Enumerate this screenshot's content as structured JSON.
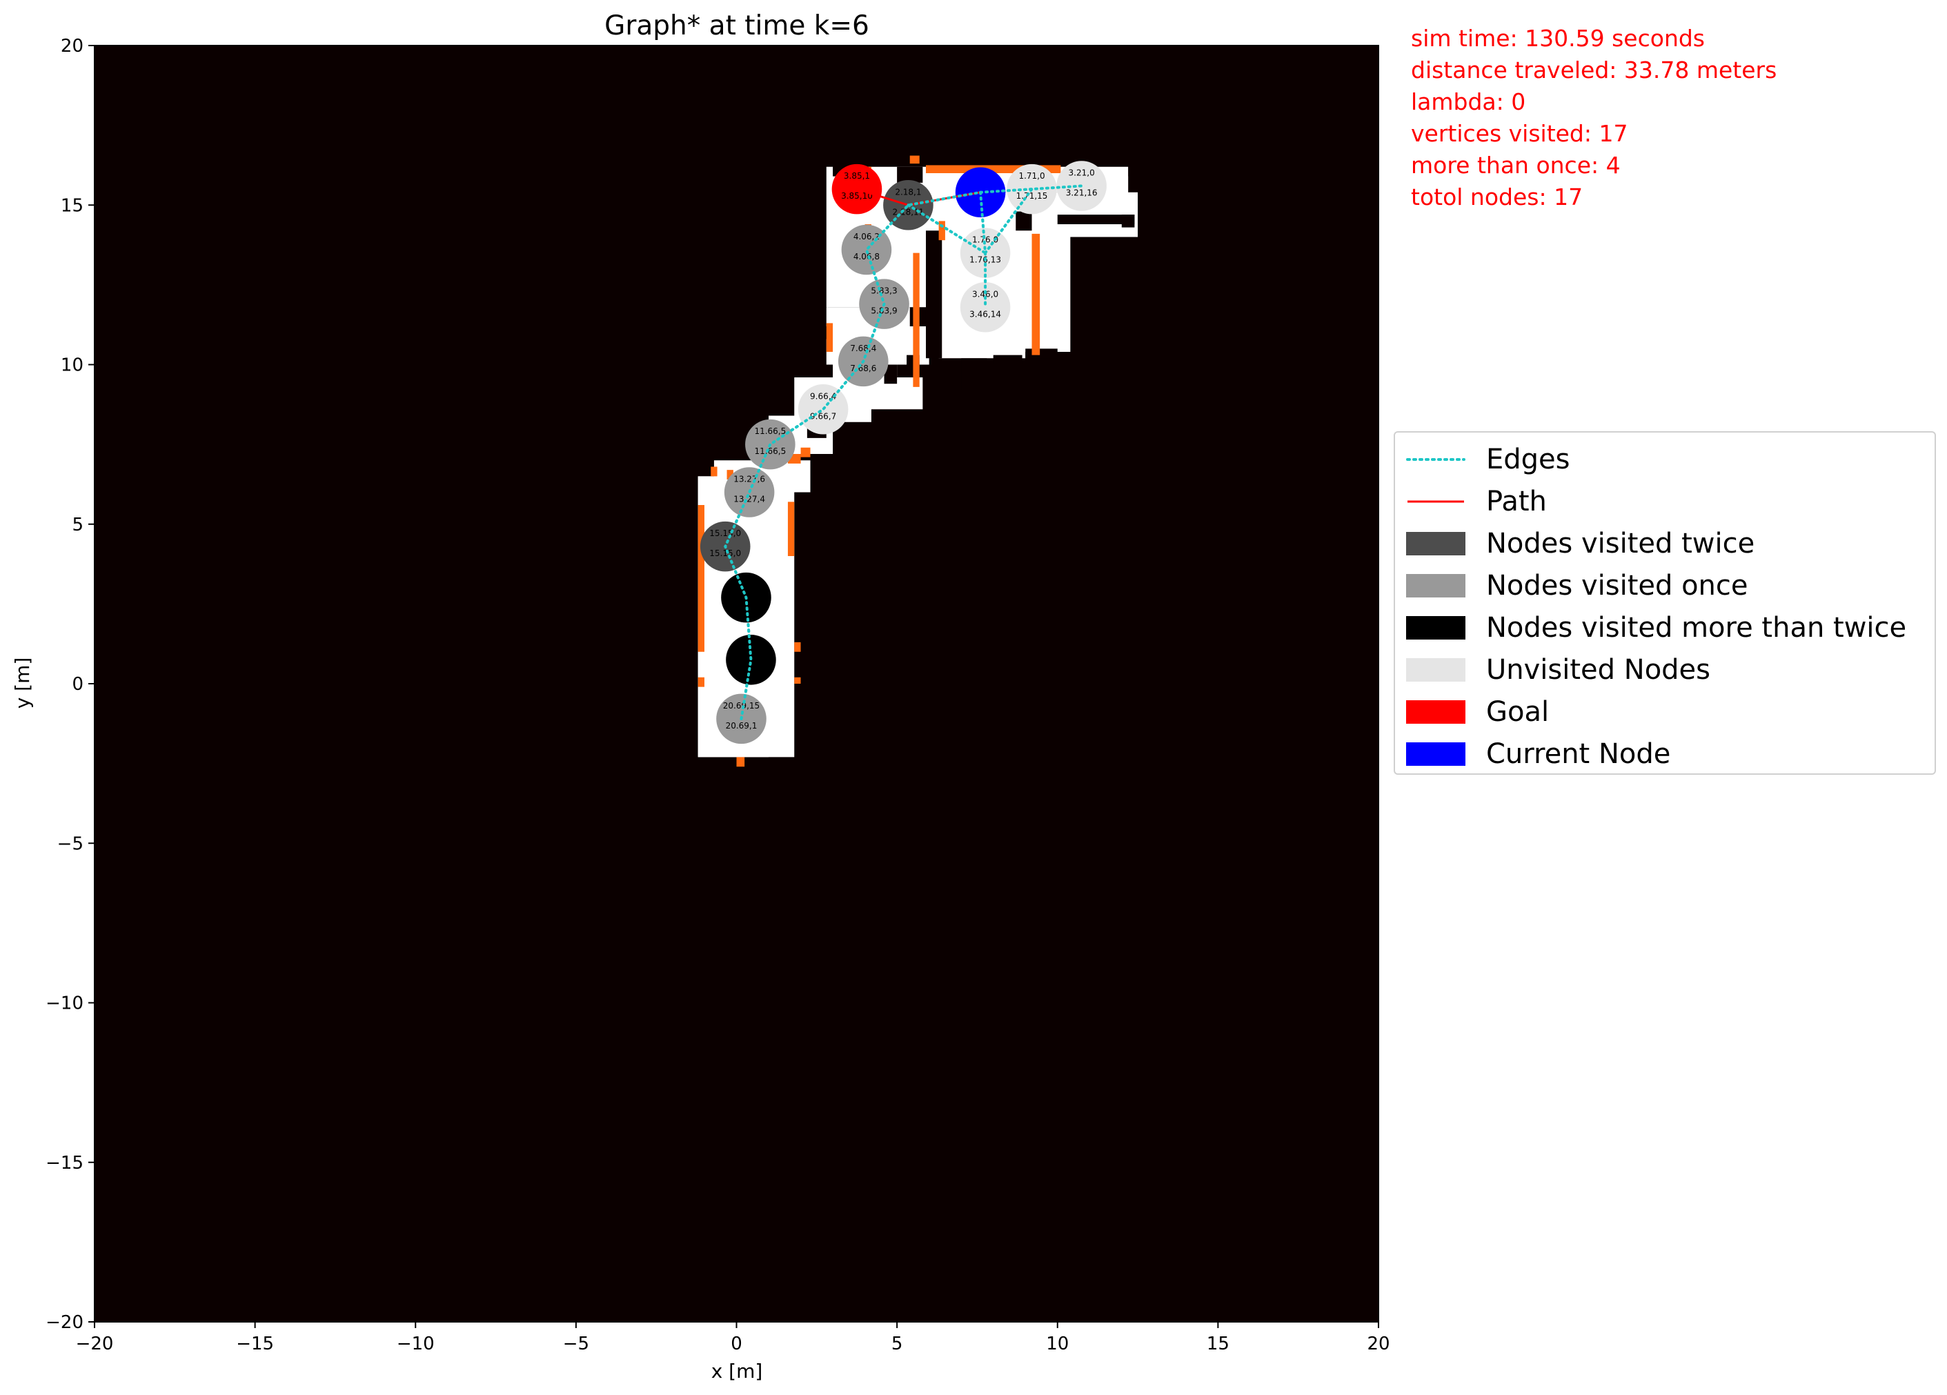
{
  "chart_data": {
    "type": "scatter",
    "title": "Graph* at time k=6",
    "xlabel": "x [m]",
    "ylabel": "y [m]",
    "xlim": [
      -20,
      20
    ],
    "ylim": [
      -20,
      20
    ],
    "xticks": [
      -20,
      -15,
      -10,
      -5,
      0,
      5,
      10,
      15,
      20
    ],
    "yticks": [
      -20,
      -15,
      -10,
      -5,
      0,
      5,
      10,
      15,
      20
    ],
    "tick_labels_x": [
      "−20",
      "−15",
      "−10",
      "−5",
      "0",
      "5",
      "10",
      "15",
      "20"
    ],
    "tick_labels_y": [
      "−20",
      "−15",
      "−10",
      "−5",
      "0",
      "5",
      "10",
      "15",
      "20"
    ],
    "background_color": "#0b0000",
    "free_space_color": "#ffffff",
    "wall_color": "#ff6a10",
    "map_cells": [
      [
        -1.2,
        -2.3,
        3.0,
        8.8
      ],
      [
        -1.2,
        -2.3,
        2.2,
        8.8
      ],
      [
        -0.7,
        6.0,
        3.0,
        1.0
      ],
      [
        1.0,
        7.2,
        2.0,
        1.2
      ],
      [
        1.8,
        8.2,
        2.4,
        1.4
      ],
      [
        3.0,
        9.4,
        2.0,
        1.2
      ],
      [
        2.8,
        8.6,
        3.0,
        1.0
      ],
      [
        2.8,
        10.0,
        3.2,
        0.4
      ],
      [
        2.8,
        10.4,
        3.4,
        0.4
      ],
      [
        2.9,
        10.8,
        3.2,
        0.4
      ],
      [
        2.8,
        11.2,
        2.6,
        0.6
      ],
      [
        2.8,
        11.8,
        3.2,
        3.0
      ],
      [
        2.8,
        14.8,
        5.0,
        1.4
      ],
      [
        5.5,
        14.0,
        7.0,
        1.4
      ],
      [
        5.9,
        15.4,
        6.3,
        0.8
      ],
      [
        6.3,
        10.2,
        2.7,
        4.6
      ],
      [
        8.8,
        10.4,
        1.6,
        4.0
      ],
      [
        10.4,
        14.6,
        1.8,
        1.3
      ]
    ],
    "black_cells": [
      [
        5.9,
        10.2,
        0.5,
        4.0
      ],
      [
        8.7,
        14.2,
        0.5,
        0.6
      ],
      [
        10.0,
        14.4,
        2.4,
        0.3
      ],
      [
        12.0,
        14.3,
        0.4,
        0.4
      ],
      [
        5.3,
        9.8,
        0.4,
        0.5
      ],
      [
        4.6,
        9.4,
        0.4,
        0.6
      ],
      [
        3.0,
        8.4,
        0.4,
        0.3
      ],
      [
        2.2,
        7.7,
        0.6,
        0.4
      ],
      [
        9.0,
        10.2,
        1.0,
        0.3
      ],
      [
        7.0,
        9.2,
        0.8,
        1.0
      ],
      [
        8.0,
        10.0,
        0.9,
        0.3
      ],
      [
        3.0,
        15.9,
        1.0,
        0.4
      ],
      [
        5.0,
        15.7,
        0.8,
        0.5
      ]
    ],
    "wall_cells": [
      [
        2.8,
        10.4,
        0.2,
        0.9
      ],
      [
        4.0,
        14.0,
        0.2,
        0.4
      ],
      [
        5.9,
        16.0,
        4.2,
        0.25
      ],
      [
        5.5,
        9.3,
        0.2,
        4.2
      ],
      [
        9.2,
        10.3,
        0.25,
        3.8
      ],
      [
        -1.2,
        1.0,
        0.2,
        4.6
      ],
      [
        1.6,
        4.0,
        0.2,
        1.7
      ],
      [
        -0.3,
        6.4,
        0.2,
        0.3
      ],
      [
        -0.8,
        6.5,
        0.2,
        0.3
      ],
      [
        1.3,
        7.0,
        0.2,
        0.3
      ],
      [
        1.6,
        6.9,
        0.4,
        0.3
      ],
      [
        2.0,
        7.1,
        0.3,
        0.3
      ],
      [
        1.8,
        1.0,
        0.2,
        0.3
      ],
      [
        1.8,
        0.0,
        0.2,
        0.2
      ],
      [
        0.0,
        -2.6,
        0.25,
        0.3
      ],
      [
        -1.2,
        -0.1,
        0.2,
        0.3
      ],
      [
        4.0,
        15.7,
        0.2,
        0.5
      ],
      [
        5.4,
        16.3,
        0.3,
        0.25
      ],
      [
        6.3,
        13.9,
        0.2,
        0.6
      ]
    ],
    "nodes": [
      {
        "x": 3.75,
        "y": 15.5,
        "label": "3.85,1",
        "label2": "3.85,10",
        "status": "goal"
      },
      {
        "x": 5.35,
        "y": 15.0,
        "label": "2.18,1",
        "label2": "2.18,11",
        "status": "visited_twice"
      },
      {
        "x": 7.6,
        "y": 15.4,
        "label": "",
        "label2": "",
        "status": "current"
      },
      {
        "x": 9.2,
        "y": 15.5,
        "label": "1.71,0",
        "label2": "1.71,15",
        "status": "unvisited"
      },
      {
        "x": 10.75,
        "y": 15.6,
        "label": "3.21,0",
        "label2": "3.21,16",
        "status": "unvisited"
      },
      {
        "x": 4.05,
        "y": 13.6,
        "label": "4.06,2",
        "label2": "4.06,8",
        "status": "visited_once"
      },
      {
        "x": 7.75,
        "y": 13.5,
        "label": "1.76,0",
        "label2": "1.76,13",
        "status": "unvisited"
      },
      {
        "x": 4.6,
        "y": 11.9,
        "label": "5.83,3",
        "label2": "5.83,9",
        "status": "visited_once"
      },
      {
        "x": 7.75,
        "y": 11.8,
        "label": "3.46,0",
        "label2": "3.46,14",
        "status": "unvisited"
      },
      {
        "x": 3.95,
        "y": 10.1,
        "label": "7.68,4",
        "label2": "7.68,6",
        "status": "visited_once"
      },
      {
        "x": 2.7,
        "y": 8.6,
        "label": "9.66,4",
        "label2": "9.66,7",
        "status": "unvisited"
      },
      {
        "x": 1.05,
        "y": 7.5,
        "label": "11.66,5",
        "label2": "11.66,5",
        "status": "visited_once"
      },
      {
        "x": 0.4,
        "y": 6.0,
        "label": "13.27,6",
        "label2": "13.27,4",
        "status": "visited_once"
      },
      {
        "x": -0.35,
        "y": 4.3,
        "label": "15.15,0",
        "label2": "15.15,0",
        "status": "visited_twice"
      },
      {
        "x": 0.3,
        "y": 2.7,
        "label": "",
        "label2": "",
        "status": "visited_more"
      },
      {
        "x": 0.45,
        "y": 0.75,
        "label": "",
        "label2": "",
        "status": "visited_more"
      },
      {
        "x": 0.15,
        "y": -1.1,
        "label": "20.69,15",
        "label2": "20.69,1",
        "status": "visited_once"
      }
    ],
    "edges": [
      [
        [
          0.15,
          -1.1
        ],
        [
          0.45,
          0.75
        ],
        [
          0.3,
          2.7
        ],
        [
          -0.35,
          4.3
        ],
        [
          0.4,
          6.0
        ],
        [
          1.05,
          7.5
        ],
        [
          2.7,
          8.6
        ],
        [
          3.95,
          10.1
        ],
        [
          4.6,
          11.9
        ],
        [
          4.05,
          13.6
        ],
        [
          5.35,
          15.0
        ],
        [
          7.6,
          15.4
        ]
      ],
      [
        [
          5.35,
          15.0
        ],
        [
          7.75,
          13.5
        ]
      ],
      [
        [
          7.6,
          15.4
        ],
        [
          7.75,
          13.5
        ],
        [
          7.75,
          11.8
        ]
      ],
      [
        [
          7.75,
          13.5
        ],
        [
          9.2,
          15.5
        ]
      ],
      [
        [
          7.6,
          15.4
        ],
        [
          9.2,
          15.5
        ],
        [
          10.75,
          15.6
        ]
      ]
    ],
    "path": [
      [
        3.75,
        15.5
      ],
      [
        5.35,
        15.0
      ],
      [
        7.6,
        15.4
      ]
    ],
    "node_colors": {
      "goal": "#ff0000",
      "current": "#0000ff",
      "visited_twice": "#4d4d4d",
      "visited_once": "#999999",
      "visited_more": "#000000",
      "unvisited": "#e5e5e5"
    },
    "edge_color": "#1ec6c6",
    "path_color": "#ff0000"
  },
  "stats": {
    "sim_time": "sim time: 130.59 seconds",
    "distance": "distance traveled: 33.78 meters",
    "lambda": "lambda: 0",
    "vertices_visited": "vertices visited: 17",
    "more_than_once": "more than once: 4",
    "total_nodes": "totol nodes: 17"
  },
  "legend": {
    "placement": "right",
    "items": [
      {
        "label": "Edges",
        "kind": "dotted",
        "color": "#1ec6c6"
      },
      {
        "label": "Path",
        "kind": "line",
        "color": "#ff0000"
      },
      {
        "label": "Nodes visited twice",
        "kind": "patch",
        "color": "#4d4d4d"
      },
      {
        "label": "Nodes visited once",
        "kind": "patch",
        "color": "#999999"
      },
      {
        "label": "Nodes visited more than twice",
        "kind": "patch",
        "color": "#000000"
      },
      {
        "label": "Unvisited Nodes",
        "kind": "patch",
        "color": "#e5e5e5"
      },
      {
        "label": "Goal",
        "kind": "patch",
        "color": "#ff0000"
      },
      {
        "label": "Current Node",
        "kind": "patch",
        "color": "#0000ff"
      }
    ]
  }
}
